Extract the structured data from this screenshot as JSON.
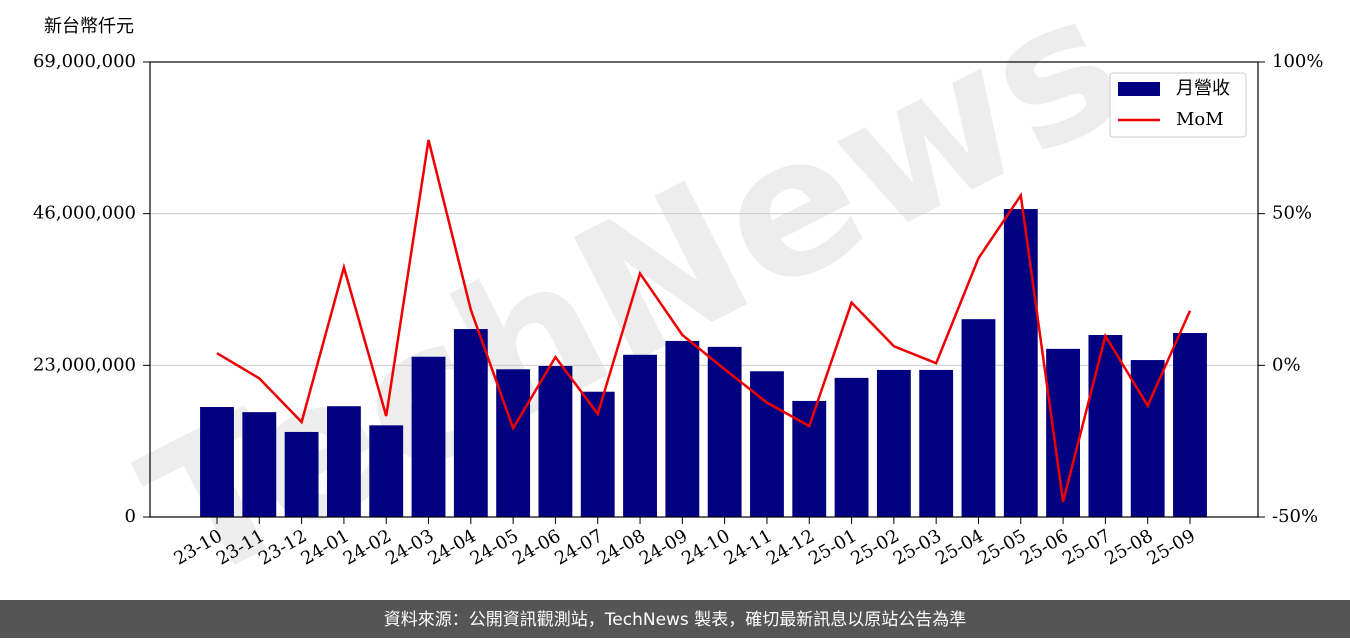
{
  "chart_data": {
    "type": "bar-line",
    "watermark": "TechNews",
    "ylabel": "新台幣仟元",
    "categories": [
      "23-10",
      "23-11",
      "23-12",
      "24-01",
      "24-02",
      "24-03",
      "24-04",
      "24-05",
      "24-06",
      "24-07",
      "24-08",
      "24-09",
      "24-10",
      "24-11",
      "24-12",
      "25-01",
      "25-02",
      "25-03",
      "25-04",
      "25-05",
      "25-06",
      "25-07",
      "25-08",
      "25-09"
    ],
    "series": [
      {
        "name": "月營收",
        "kind": "bar",
        "color": "#000080",
        "values": [
          16680000,
          15900000,
          12900000,
          16800000,
          13900000,
          24300000,
          28500000,
          22400000,
          22900000,
          19000000,
          24600000,
          26700000,
          25800000,
          22100000,
          17600000,
          21100000,
          22300000,
          22300000,
          30000000,
          46700000,
          25500000,
          27600000,
          23800000,
          27900000
        ]
      },
      {
        "name": "MoM",
        "kind": "line",
        "axis": "y2",
        "color": "#ee0000",
        "values": [
          4,
          -4.3,
          -18.7,
          32.3,
          -16.7,
          74.3,
          18.3,
          -20.7,
          2.7,
          -16,
          30.3,
          10,
          -1.3,
          -12.3,
          -20,
          20.7,
          6.3,
          0.7,
          35.3,
          56,
          -45,
          9.7,
          -13.3,
          18
        ]
      }
    ],
    "ylim": [
      0,
      69000000
    ],
    "yticks": [
      0,
      {
        "value": 23000000,
        "label": "23,000,000"
      },
      {
        "value": 46000000,
        "label": "46,000,000"
      },
      {
        "value": 69000000,
        "label": "69,000,000"
      }
    ],
    "y2lim": [
      -50,
      100
    ],
    "y2ticks": [
      {
        "value": -50,
        "label": "-50%"
      },
      {
        "value": 0,
        "label": "0%"
      },
      {
        "value": 50,
        "label": "50%"
      },
      {
        "value": 100,
        "label": "100%"
      }
    ],
    "grid": true,
    "legend": "upper right",
    "footer": "資料來源：公開資訊觀測站，TechNews 製表，確切最新訊息以原站公告為準"
  }
}
